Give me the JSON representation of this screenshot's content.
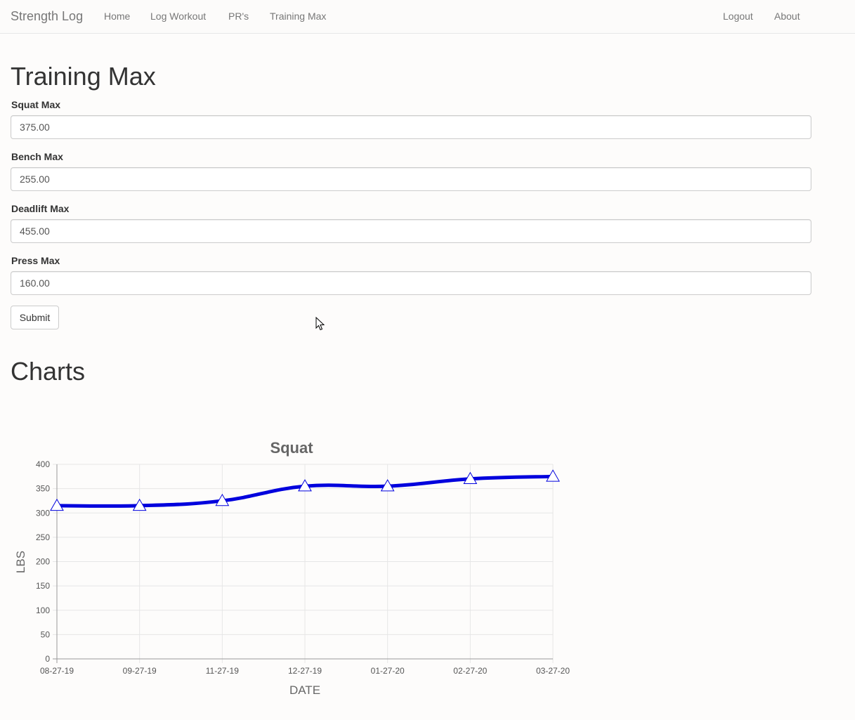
{
  "navbar": {
    "brand": "Strength Log",
    "left_links": [
      "Home",
      "Log Workout",
      "PR's",
      "Training Max"
    ],
    "right_links": [
      "Logout",
      "About"
    ]
  },
  "page": {
    "title": "Training Max",
    "charts_title": "Charts"
  },
  "form": {
    "fields": [
      {
        "label": "Squat Max",
        "value": "375.00"
      },
      {
        "label": "Bench Max",
        "value": "255.00"
      },
      {
        "label": "Deadlift Max",
        "value": "455.00"
      },
      {
        "label": "Press Max",
        "value": "160.00"
      }
    ],
    "submit_label": "Submit"
  },
  "chart_data": {
    "type": "line",
    "title": "Squat",
    "xlabel": "DATE",
    "ylabel": "LBS",
    "categories": [
      "08-27-19",
      "09-27-19",
      "11-27-19",
      "12-27-19",
      "01-27-20",
      "02-27-20",
      "03-27-20"
    ],
    "values": [
      315,
      315,
      325,
      355,
      355,
      370,
      375
    ],
    "ylim": [
      0,
      400
    ],
    "yticks": [
      0,
      50,
      100,
      150,
      200,
      250,
      300,
      350,
      400
    ],
    "grid": true,
    "line_color": "#0000dd",
    "marker": "triangle"
  }
}
